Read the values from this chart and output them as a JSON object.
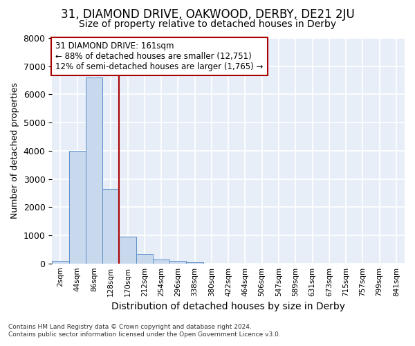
{
  "title": "31, DIAMOND DRIVE, OAKWOOD, DERBY, DE21 2JU",
  "subtitle": "Size of property relative to detached houses in Derby",
  "xlabel": "Distribution of detached houses by size in Derby",
  "ylabel": "Number of detached properties",
  "footnote": "Contains HM Land Registry data © Crown copyright and database right 2024.\nContains public sector information licensed under the Open Government Licence v3.0.",
  "bar_labels": [
    "2sqm",
    "44sqm",
    "86sqm",
    "128sqm",
    "170sqm",
    "212sqm",
    "254sqm",
    "296sqm",
    "338sqm",
    "380sqm",
    "422sqm",
    "464sqm",
    "506sqm",
    "547sqm",
    "589sqm",
    "631sqm",
    "673sqm",
    "715sqm",
    "757sqm",
    "799sqm",
    "841sqm"
  ],
  "bar_values": [
    80,
    4000,
    6600,
    2650,
    950,
    330,
    145,
    85,
    50,
    0,
    0,
    0,
    0,
    0,
    0,
    0,
    0,
    0,
    0,
    0,
    0
  ],
  "bar_color": "#c8d8ed",
  "bar_edge_color": "#5b8fc9",
  "vline_x_index": 4,
  "vline_color": "#aa0000",
  "annotation_text": "31 DIAMOND DRIVE: 161sqm\n← 88% of detached houses are smaller (12,751)\n12% of semi-detached houses are larger (1,765) →",
  "annotation_box_color": "#ffffff",
  "annotation_box_edge": "#aa0000",
  "ylim": [
    0,
    8000
  ],
  "yticks": [
    0,
    1000,
    2000,
    3000,
    4000,
    5000,
    6000,
    7000,
    8000
  ],
  "bg_color": "#ffffff",
  "plot_bg_color": "#e8eef8",
  "grid_color": "#ffffff",
  "title_fontsize": 12,
  "subtitle_fontsize": 10,
  "ylabel_fontsize": 9,
  "xlabel_fontsize": 10
}
